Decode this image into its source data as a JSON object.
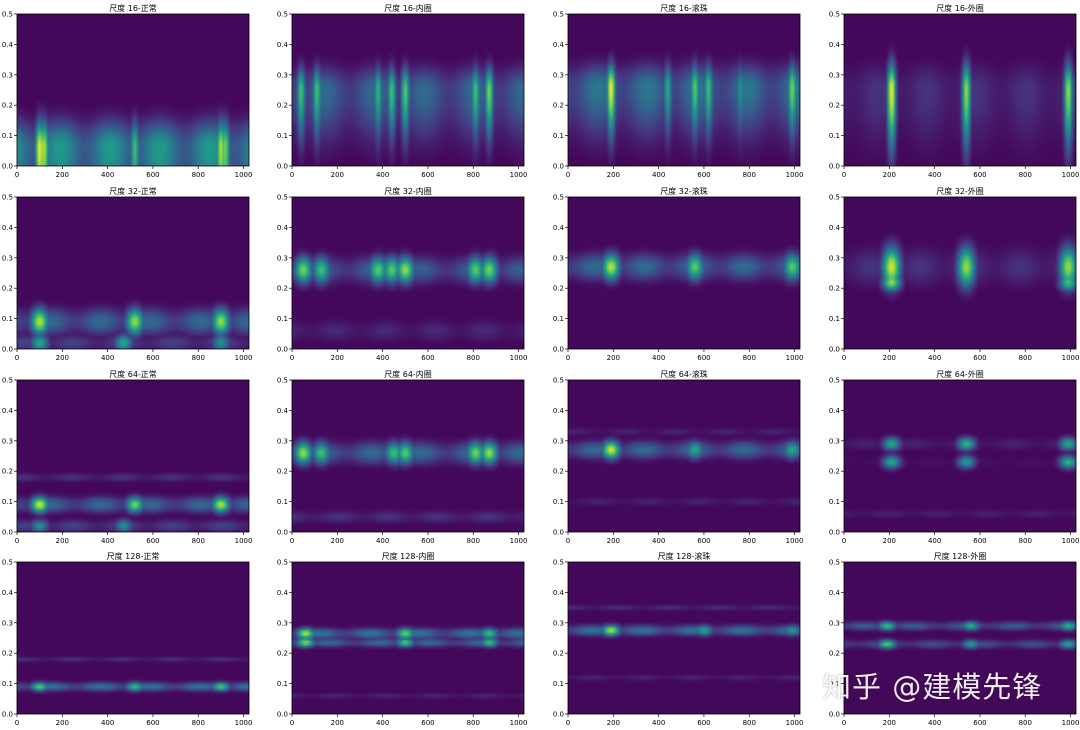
{
  "watermark": "知乎 @建模先锋",
  "colormap": [
    "#440154",
    "#46327e",
    "#365c8d",
    "#277f8e",
    "#1fa187",
    "#4ac16d",
    "#a0da39",
    "#fde725"
  ],
  "axes": {
    "x_ticks": [
      0,
      200,
      400,
      600,
      800,
      1000
    ],
    "y_ticks": [
      0.0,
      0.1,
      0.2,
      0.3,
      0.4,
      0.5
    ],
    "y_tick_labels": [
      "0.0",
      "0.1",
      "0.2",
      "0.3",
      "0.4",
      "0.5"
    ],
    "xlim": [
      0,
      1024
    ],
    "ylim": [
      0,
      0.5
    ]
  },
  "chart_data": [
    {
      "type": "heatmap",
      "title": "尺度 16-正常",
      "bands": [
        {
          "y": 0.06,
          "spread": 0.06,
          "level": 0.55,
          "peaks": [
            [
              100,
              1.0
            ],
            [
              120,
              0.9
            ],
            [
              520,
              0.7
            ],
            [
              900,
              0.9
            ],
            [
              920,
              0.8
            ]
          ],
          "columnar": true
        }
      ]
    },
    {
      "type": "heatmap",
      "title": "尺度 16-内圈",
      "bands": [
        {
          "y": 0.25,
          "spread": 0.05,
          "level": 0.35,
          "peaks": [
            [
              40,
              0.7
            ],
            [
              110,
              0.7
            ],
            [
              380,
              0.65
            ],
            [
              440,
              0.7
            ],
            [
              500,
              0.75
            ],
            [
              810,
              0.7
            ],
            [
              870,
              0.8
            ]
          ],
          "columnar": true
        }
      ]
    },
    {
      "type": "heatmap",
      "title": "尺度 16-滚珠",
      "bands": [
        {
          "y": 0.26,
          "spread": 0.05,
          "level": 0.4,
          "peaks": [
            [
              190,
              1.0
            ],
            [
              440,
              0.6
            ],
            [
              560,
              0.75
            ],
            [
              620,
              0.7
            ],
            [
              760,
              0.5
            ],
            [
              990,
              0.8
            ]
          ],
          "columnar": true
        }
      ]
    },
    {
      "type": "heatmap",
      "title": "尺度 16-外圈",
      "bands": [
        {
          "y": 0.25,
          "spread": 0.06,
          "level": 0.15,
          "peaks": [
            [
              210,
              1.0
            ],
            [
              540,
              0.85
            ],
            [
              990,
              0.85
            ]
          ],
          "columnar": true
        }
      ]
    },
    {
      "type": "heatmap",
      "title": "尺度 32-正常",
      "bands": [
        {
          "y": 0.09,
          "spread": 0.03,
          "level": 0.35,
          "peaks": [
            [
              100,
              0.9
            ],
            [
              520,
              0.85
            ],
            [
              900,
              0.85
            ]
          ],
          "columnar": false
        },
        {
          "y": 0.02,
          "spread": 0.02,
          "level": 0.2,
          "peaks": [
            [
              100,
              0.6
            ],
            [
              470,
              0.6
            ],
            [
              900,
              0.5
            ]
          ],
          "columnar": false
        }
      ]
    },
    {
      "type": "heatmap",
      "title": "尺度 32-内圈",
      "bands": [
        {
          "y": 0.26,
          "spread": 0.03,
          "level": 0.3,
          "peaks": [
            [
              50,
              0.8
            ],
            [
              130,
              0.7
            ],
            [
              380,
              0.75
            ],
            [
              440,
              0.75
            ],
            [
              500,
              0.85
            ],
            [
              810,
              0.75
            ],
            [
              870,
              0.8
            ]
          ],
          "columnar": false
        },
        {
          "y": 0.06,
          "spread": 0.025,
          "level": 0.12,
          "peaks": [],
          "columnar": false
        }
      ]
    },
    {
      "type": "heatmap",
      "title": "尺度 32-滚珠",
      "bands": [
        {
          "y": 0.27,
          "spread": 0.03,
          "level": 0.35,
          "peaks": [
            [
              190,
              0.9
            ],
            [
              560,
              0.75
            ],
            [
              990,
              0.75
            ]
          ],
          "columnar": false
        }
      ]
    },
    {
      "type": "heatmap",
      "title": "尺度 32-外圈",
      "bands": [
        {
          "y": 0.27,
          "spread": 0.045,
          "level": 0.15,
          "peaks": [
            [
              210,
              0.95
            ],
            [
              540,
              0.85
            ],
            [
              990,
              0.85
            ]
          ],
          "columnar": false
        },
        {
          "y": 0.22,
          "spread": 0.02,
          "level": 0.0,
          "peaks": [
            [
              210,
              0.85
            ],
            [
              990,
              0.7
            ]
          ],
          "columnar": false
        }
      ]
    },
    {
      "type": "heatmap",
      "title": "尺度 64-正常",
      "bands": [
        {
          "y": 0.09,
          "spread": 0.018,
          "level": 0.35,
          "peaks": [
            [
              100,
              0.95
            ],
            [
              520,
              0.8
            ],
            [
              900,
              0.9
            ]
          ],
          "columnar": false
        },
        {
          "y": 0.02,
          "spread": 0.015,
          "level": 0.2,
          "peaks": [
            [
              100,
              0.5
            ],
            [
              470,
              0.5
            ]
          ],
          "columnar": false
        },
        {
          "y": 0.18,
          "spread": 0.01,
          "level": 0.15,
          "peaks": [],
          "columnar": false
        }
      ]
    },
    {
      "type": "heatmap",
      "title": "尺度 64-内圈",
      "bands": [
        {
          "y": 0.26,
          "spread": 0.025,
          "level": 0.35,
          "peaks": [
            [
              50,
              0.85
            ],
            [
              130,
              0.7
            ],
            [
              450,
              0.7
            ],
            [
              500,
              0.75
            ],
            [
              810,
              0.8
            ],
            [
              870,
              0.85
            ]
          ],
          "columnar": false
        },
        {
          "y": 0.05,
          "spread": 0.015,
          "level": 0.15,
          "peaks": [],
          "columnar": false
        }
      ]
    },
    {
      "type": "heatmap",
      "title": "尺度 64-滚珠",
      "bands": [
        {
          "y": 0.27,
          "spread": 0.02,
          "level": 0.35,
          "peaks": [
            [
              190,
              0.95
            ],
            [
              560,
              0.6
            ],
            [
              990,
              0.6
            ]
          ],
          "columnar": false
        },
        {
          "y": 0.33,
          "spread": 0.01,
          "level": 0.1,
          "peaks": [],
          "columnar": false
        },
        {
          "y": 0.1,
          "spread": 0.01,
          "level": 0.1,
          "peaks": [],
          "columnar": false
        }
      ]
    },
    {
      "type": "heatmap",
      "title": "尺度 64-外圈",
      "bands": [
        {
          "y": 0.29,
          "spread": 0.015,
          "level": 0.1,
          "peaks": [
            [
              210,
              0.6
            ],
            [
              540,
              0.65
            ],
            [
              990,
              0.6
            ]
          ],
          "columnar": false
        },
        {
          "y": 0.23,
          "spread": 0.015,
          "level": 0.05,
          "peaks": [
            [
              210,
              0.6
            ],
            [
              540,
              0.55
            ],
            [
              990,
              0.65
            ]
          ],
          "columnar": false
        },
        {
          "y": 0.06,
          "spread": 0.01,
          "level": 0.1,
          "peaks": [],
          "columnar": false
        }
      ]
    },
    {
      "type": "heatmap",
      "title": "尺度 128-正常",
      "bands": [
        {
          "y": 0.09,
          "spread": 0.01,
          "level": 0.4,
          "peaks": [
            [
              100,
              0.75
            ],
            [
              520,
              0.7
            ],
            [
              900,
              0.75
            ]
          ],
          "columnar": false
        },
        {
          "y": 0.18,
          "spread": 0.006,
          "level": 0.15,
          "peaks": [],
          "columnar": false
        }
      ]
    },
    {
      "type": "heatmap",
      "title": "尺度 128-内圈",
      "bands": [
        {
          "y": 0.265,
          "spread": 0.012,
          "level": 0.4,
          "peaks": [
            [
              60,
              0.9
            ],
            [
              500,
              0.8
            ],
            [
              870,
              0.7
            ]
          ],
          "columnar": false
        },
        {
          "y": 0.235,
          "spread": 0.01,
          "level": 0.35,
          "peaks": [
            [
              60,
              0.85
            ],
            [
              500,
              0.75
            ],
            [
              870,
              0.7
            ]
          ],
          "columnar": false
        },
        {
          "y": 0.06,
          "spread": 0.006,
          "level": 0.12,
          "peaks": [],
          "columnar": false
        }
      ]
    },
    {
      "type": "heatmap",
      "title": "尺度 128-滚珠",
      "bands": [
        {
          "y": 0.275,
          "spread": 0.012,
          "level": 0.4,
          "peaks": [
            [
              190,
              0.9
            ],
            [
              600,
              0.6
            ],
            [
              990,
              0.55
            ]
          ],
          "columnar": false
        },
        {
          "y": 0.35,
          "spread": 0.006,
          "level": 0.15,
          "peaks": [],
          "columnar": false
        },
        {
          "y": 0.12,
          "spread": 0.006,
          "level": 0.12,
          "peaks": [],
          "columnar": false
        }
      ]
    },
    {
      "type": "heatmap",
      "title": "尺度 128-外圈",
      "bands": [
        {
          "y": 0.29,
          "spread": 0.01,
          "level": 0.3,
          "peaks": [
            [
              190,
              0.7
            ],
            [
              560,
              0.65
            ],
            [
              990,
              0.65
            ]
          ],
          "columnar": false
        },
        {
          "y": 0.23,
          "spread": 0.01,
          "level": 0.25,
          "peaks": [
            [
              190,
              0.75
            ],
            [
              560,
              0.55
            ],
            [
              990,
              0.6
            ]
          ],
          "columnar": false
        }
      ]
    }
  ]
}
